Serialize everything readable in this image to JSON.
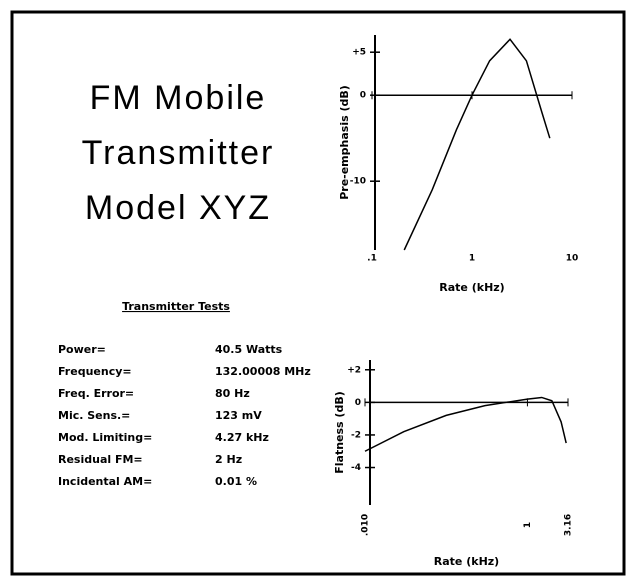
{
  "header": {
    "title": [
      "FM Mobile",
      "Transmitter",
      "Model XYZ"
    ]
  },
  "table": {
    "heading": "Transmitter Tests",
    "rows": [
      [
        "Power=",
        "40.5 Watts"
      ],
      [
        "Frequency=",
        "132.00008 MHz"
      ],
      [
        "Freq. Error=",
        "80 Hz"
      ],
      [
        "Mic. Sens.=",
        "123 mV"
      ],
      [
        "Mod. Limiting=",
        "4.27 kHz"
      ],
      [
        "Residual FM=",
        "2 Hz"
      ],
      [
        "Incidental AM=",
        "0.01 %"
      ]
    ]
  },
  "chart_data": [
    {
      "type": "line",
      "y_label": "Pre-emphasis (dB)",
      "x_label": "Rate (kHz)",
      "log_x": true,
      "color": "#000",
      "x": [
        0.21,
        0.4,
        0.7,
        1,
        1.5,
        2.4,
        3.5,
        5,
        6
      ],
      "values": [
        -18,
        -11,
        -4,
        0,
        4,
        6.5,
        4,
        -2,
        -5
      ],
      "xlim": [
        0.1,
        10
      ],
      "xticks": [
        {
          "value": 0.1,
          "label": ".1"
        },
        1,
        10
      ],
      "ylim": [
        -18,
        7
      ],
      "yticks": [
        {
          "value": 5,
          "label": "+5"
        },
        0,
        -10
      ]
    },
    {
      "type": "line",
      "y_label": "Flatness (dB)",
      "x_label": "Rate (kHz)",
      "log_x": true,
      "color": "#000",
      "x": [
        0.01,
        0.03,
        0.1,
        0.3,
        1,
        1.5,
        2,
        2.6,
        3.0
      ],
      "values": [
        -3,
        -1.8,
        -0.8,
        -0.2,
        0.2,
        0.3,
        0.1,
        -1.2,
        -2.5
      ],
      "xlim": [
        0.01,
        3.16
      ],
      "xticks": [
        {
          "value": 0.01,
          "label": ".010"
        },
        1,
        {
          "value": 3.16,
          "label": "3.16"
        }
      ],
      "ylim": [
        -6.3,
        2.6
      ],
      "yticks": [
        {
          "value": 2,
          "label": "+2"
        },
        0,
        -2,
        -4
      ]
    }
  ]
}
